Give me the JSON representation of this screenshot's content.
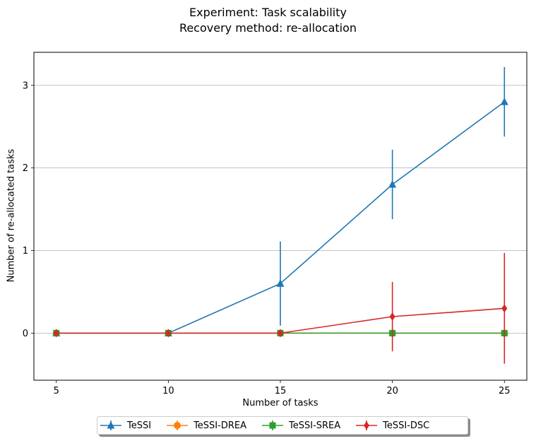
{
  "chart_data": {
    "type": "line",
    "title": "Experiment: Task scalability",
    "subtitle": "Recovery method: re-allocation",
    "xlabel": "Number of tasks",
    "ylabel": "Number of re-allocated tasks",
    "x": [
      5,
      10,
      15,
      20,
      25
    ],
    "xticks": [
      "5",
      "10",
      "15",
      "20",
      "25"
    ],
    "yticks": [
      "0",
      "1",
      "2",
      "3"
    ],
    "xlim": [
      4,
      26
    ],
    "ylim": [
      -0.57,
      3.4
    ],
    "grid": "horizontal",
    "legend_position": "bottom-center",
    "series": [
      {
        "name": "TeSSI",
        "color": "#1f77b4",
        "marker": "triangle",
        "values": [
          0,
          0,
          0.6,
          1.8,
          2.8
        ],
        "errors": [
          0,
          0,
          0.51,
          0.42,
          0.42
        ]
      },
      {
        "name": "TeSSI-DREA",
        "color": "#ff7f0e",
        "marker": "circle",
        "values": [
          0,
          0,
          0,
          0,
          0
        ],
        "errors": [
          0,
          0,
          0,
          0,
          0
        ]
      },
      {
        "name": "TeSSI-SREA",
        "color": "#2ca02c",
        "marker": "square",
        "values": [
          0,
          0,
          0,
          0,
          0
        ],
        "errors": [
          0,
          0,
          0,
          0,
          0
        ]
      },
      {
        "name": "TeSSI-DSC",
        "color": "#d62728",
        "marker": "diamond",
        "values": [
          0,
          0,
          0,
          0.2,
          0.3
        ],
        "errors": [
          0,
          0,
          0,
          0.42,
          0.67
        ]
      }
    ]
  }
}
